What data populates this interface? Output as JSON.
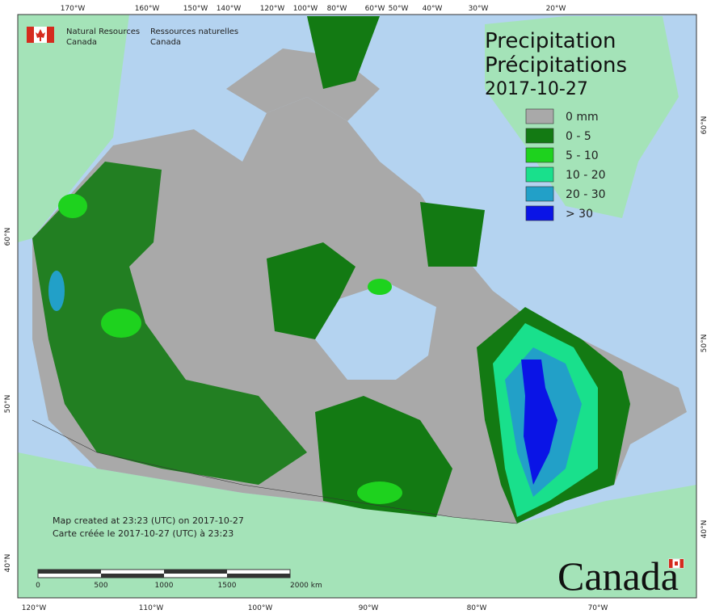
{
  "agency": {
    "en_line1": "Natural Resources",
    "en_line2": "Canada",
    "fr_line1": "Ressources naturelles",
    "fr_line2": "Canada"
  },
  "title": {
    "en": "Precipitation",
    "fr": "Précipitations",
    "date": "2017-10-27"
  },
  "legend": [
    {
      "label": "0 mm",
      "color": "#a9a9a9"
    },
    {
      "label": "0 - 5",
      "color": "#137a13"
    },
    {
      "label": "5 - 10",
      "color": "#1ed21e"
    },
    {
      "label": "10 - 20",
      "color": "#19e08c"
    },
    {
      "label": "20 - 30",
      "color": "#22a0c8"
    },
    {
      "label": "> 30",
      "color": "#0a14e6"
    }
  ],
  "top_lon_labels": [
    "170°W",
    "160°W",
    "150°W",
    "140°W",
    "120°W",
    "100°W",
    "80°W",
    "60°W",
    "50°W",
    "40°W",
    "30°W",
    "20°W"
  ],
  "bottom_lon_labels": [
    "120°W",
    "110°W",
    "100°W",
    "90°W",
    "80°W",
    "70°W"
  ],
  "left_lat_labels": [
    "60°N",
    "50°N",
    "40°N"
  ],
  "right_lat_labels": [
    "60°N",
    "50°N",
    "40°N"
  ],
  "footer": {
    "created_en": "Map created at 23:23 (UTC) on 2017-10-27",
    "created_fr": "Carte créée le 2017-10-27 (UTC) à 23:23"
  },
  "scale_labels": [
    "0",
    "500",
    "1000",
    "1500",
    "2000  km"
  ],
  "wordmark": "Canada"
}
